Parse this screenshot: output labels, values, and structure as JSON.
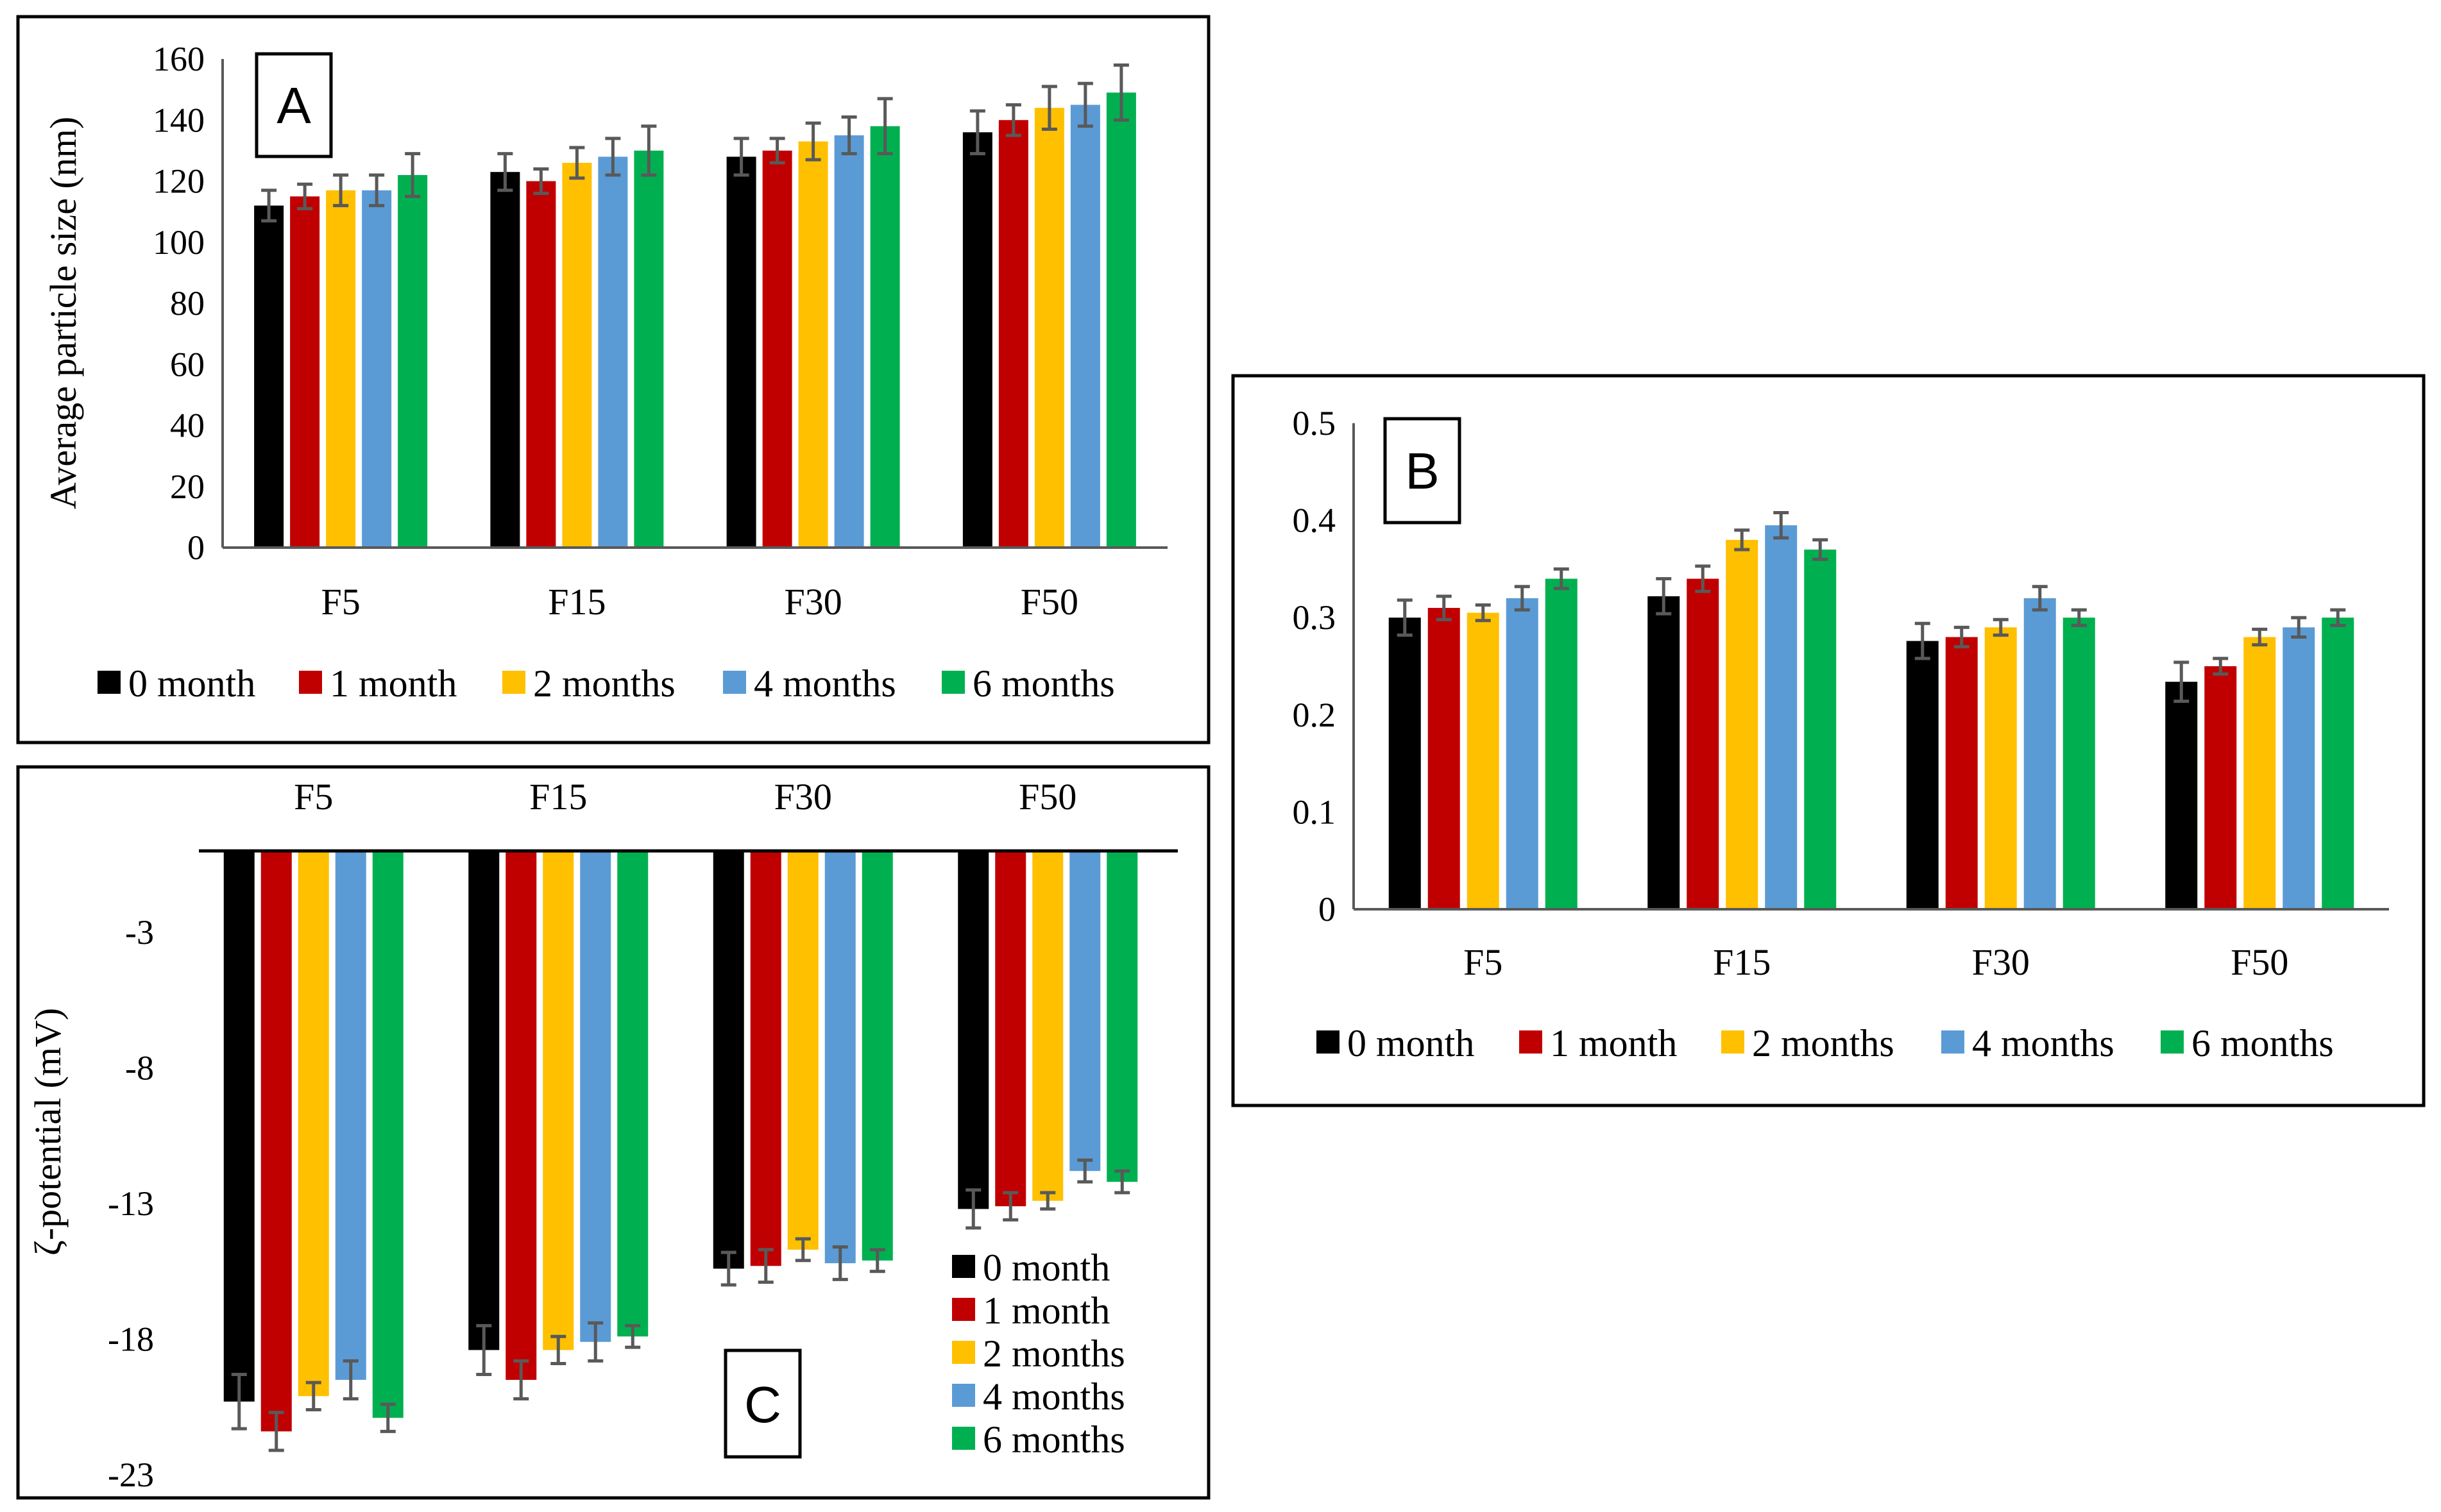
{
  "figure": {
    "colors": {
      "0 month": "#000000",
      "1 month": "#c00000",
      "2 months": "#ffc000",
      "4 months": "#5b9bd5",
      "6 months": "#00b050"
    },
    "error_bar_color": "#595959"
  },
  "chart_data": [
    {
      "panel": "A",
      "type": "bar",
      "title": "",
      "xlabel": "",
      "ylabel": "Average particle size (nm)",
      "ylim": [
        0,
        160
      ],
      "yticks": [
        "0",
        "20",
        "40",
        "60",
        "80",
        "100",
        "120",
        "140",
        "160"
      ],
      "categories": [
        "F5",
        "F15",
        "F30",
        "F50"
      ],
      "legend": [
        "0 month",
        "1 month",
        "2 months",
        "4 months",
        "6 months"
      ],
      "legend_position": "bottom",
      "series": [
        {
          "name": "0 month",
          "values": [
            112,
            123,
            128,
            136
          ],
          "errors": [
            5,
            6,
            6,
            7
          ]
        },
        {
          "name": "1 month",
          "values": [
            115,
            120,
            130,
            140
          ],
          "errors": [
            4,
            4,
            4,
            5
          ]
        },
        {
          "name": "2 months",
          "values": [
            117,
            126,
            133,
            144
          ],
          "errors": [
            5,
            5,
            6,
            7
          ]
        },
        {
          "name": "4 months",
          "values": [
            117,
            128,
            135,
            145
          ],
          "errors": [
            5,
            6,
            6,
            7
          ]
        },
        {
          "name": "6 months",
          "values": [
            122,
            130,
            138,
            149
          ],
          "errors": [
            7,
            8,
            9,
            9
          ]
        }
      ]
    },
    {
      "panel": "B",
      "type": "bar",
      "title": "",
      "xlabel": "",
      "ylabel": "",
      "ylim": [
        0,
        0.5
      ],
      "yticks": [
        "0",
        "0.1",
        "0.2",
        "0.3",
        "0.4",
        "0.5"
      ],
      "categories": [
        "F5",
        "F15",
        "F30",
        "F50"
      ],
      "legend": [
        "0 month",
        "1 month",
        "2 months",
        "4 months",
        "6 months"
      ],
      "legend_position": "bottom",
      "series": [
        {
          "name": "0 month",
          "values": [
            0.3,
            0.322,
            0.276,
            0.234
          ],
          "errors": [
            0.018,
            0.018,
            0.018,
            0.02
          ]
        },
        {
          "name": "1 month",
          "values": [
            0.31,
            0.34,
            0.28,
            0.25
          ],
          "errors": [
            0.012,
            0.013,
            0.01,
            0.008
          ]
        },
        {
          "name": "2 months",
          "values": [
            0.305,
            0.38,
            0.29,
            0.28
          ],
          "errors": [
            0.008,
            0.01,
            0.008,
            0.008
          ]
        },
        {
          "name": "4 months",
          "values": [
            0.32,
            0.395,
            0.32,
            0.29
          ],
          "errors": [
            0.012,
            0.013,
            0.012,
            0.01
          ]
        },
        {
          "name": "6 months",
          "values": [
            0.34,
            0.37,
            0.3,
            0.3
          ],
          "errors": [
            0.01,
            0.01,
            0.008,
            0.008
          ]
        }
      ]
    },
    {
      "panel": "C",
      "type": "bar",
      "title": "",
      "xlabel": "",
      "ylabel": "ζ-potential (mV)",
      "ylim": [
        -23,
        0
      ],
      "yticks": [
        "-3",
        "-8",
        "-13",
        "-18",
        "-23"
      ],
      "categories": [
        "F5",
        "F15",
        "F30",
        "F50"
      ],
      "legend": [
        "0 month",
        "1 month",
        "2 months",
        "4 months",
        "6 months"
      ],
      "legend_position": "right",
      "series": [
        {
          "name": "0 month",
          "values": [
            -20.3,
            -18.4,
            -15.4,
            -13.2
          ],
          "errors": [
            1.0,
            0.9,
            0.6,
            0.7
          ]
        },
        {
          "name": "1 month",
          "values": [
            -21.4,
            -19.5,
            -15.3,
            -13.1
          ],
          "errors": [
            0.7,
            0.7,
            0.6,
            0.5
          ]
        },
        {
          "name": "2 months",
          "values": [
            -20.1,
            -18.4,
            -14.7,
            -12.9
          ],
          "errors": [
            0.5,
            0.5,
            0.4,
            0.3
          ]
        },
        {
          "name": "4 months",
          "values": [
            -19.5,
            -18.1,
            -15.2,
            -11.8
          ],
          "errors": [
            0.7,
            0.7,
            0.6,
            0.4
          ]
        },
        {
          "name": "6 months",
          "values": [
            -20.9,
            -17.9,
            -15.1,
            -12.2
          ],
          "errors": [
            0.5,
            0.4,
            0.4,
            0.4
          ]
        }
      ]
    }
  ]
}
